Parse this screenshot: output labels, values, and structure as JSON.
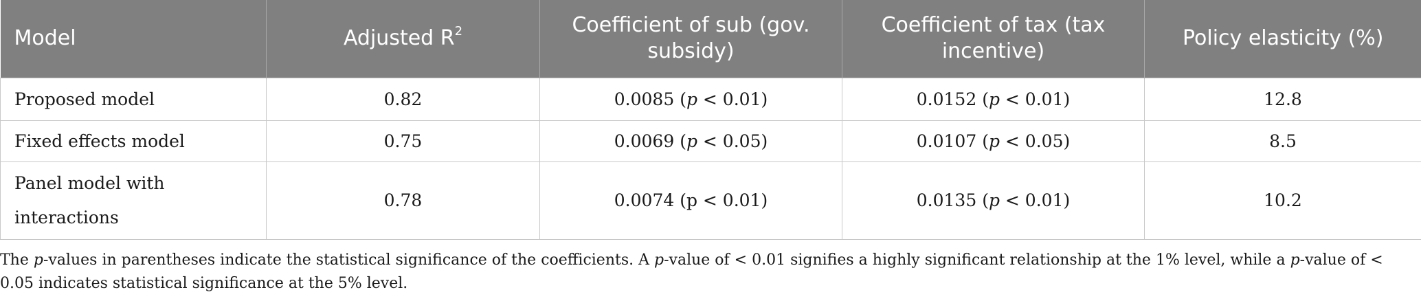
{
  "table": {
    "headers": {
      "model": "Model",
      "adjusted_r": "Adjusted R",
      "adjusted_r_sup": "2",
      "coef_sub": "Coefficient of sub (gov. subsidy)",
      "coef_tax": "Coefficient of tax (tax incentive)",
      "policy_elasticity": "Policy elasticity (%)"
    },
    "rows": [
      {
        "model": "Proposed model",
        "adjusted_r2": "0.82",
        "sub_value": "0.0085",
        "sub_p_letter": "p",
        "sub_p_rest": " < 0.01)",
        "tax_value": "0.0152",
        "tax_p_letter": "p",
        "tax_p_rest": " < 0.01)",
        "elasticity": "12.8"
      },
      {
        "model": "Fixed effects model",
        "adjusted_r2": "0.75",
        "sub_value": "0.0069",
        "sub_p_letter": "p",
        "sub_p_rest": " < 0.05)",
        "tax_value": "0.0107",
        "tax_p_letter": "p",
        "tax_p_rest": " < 0.05)",
        "elasticity": "8.5"
      },
      {
        "model_line1": "Panel model with",
        "model_line2": "interactions",
        "adjusted_r2": "0.78",
        "sub_text": "0.0074 (p < 0.01)",
        "tax_value": "0.0135",
        "tax_p_letter": "p",
        "tax_p_rest": " < 0.01)",
        "elasticity": "10.2"
      }
    ]
  },
  "footnote": {
    "p1": "p",
    "t1": "-values in parentheses indicate the statistical significance of the coefficients. A ",
    "p2": "p",
    "t2": "-value of < 0.01 signifies a highly significant relationship at the 1% level, while a ",
    "p3": "p",
    "t3": "-value of < 0.05 indicates statistical significance at the 5% level.",
    "lead": "The "
  }
}
